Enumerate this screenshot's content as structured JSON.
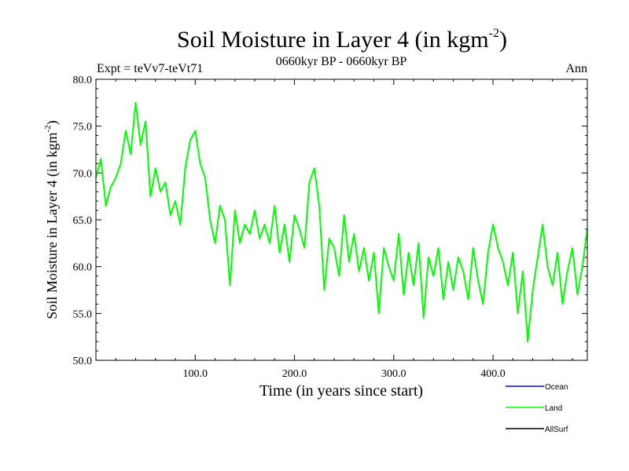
{
  "chart_data": {
    "type": "line",
    "title": "Soil Moisture in Layer 4 (in kgm",
    "title_superscript": "-2",
    "title_close": ")",
    "subtitle": "0660kyr BP - 0660kyr BP",
    "left_label": "Expt = teVv7-teVt71",
    "right_label": "Ann",
    "xlabel": "Time (in years since start)",
    "ylabel": "Soil Moisture in Layer 4 (in kgm",
    "ylabel_superscript": "-2",
    "ylabel_close": ")",
    "xlim": [
      0,
      495
    ],
    "ylim": [
      50,
      80
    ],
    "x_ticks": [
      {
        "value": 100,
        "label": "100.0"
      },
      {
        "value": 200,
        "label": "200.0"
      },
      {
        "value": 300,
        "label": "300.0"
      },
      {
        "value": 400,
        "label": "400.0"
      }
    ],
    "y_ticks": [
      {
        "value": 50,
        "label": "50.0"
      },
      {
        "value": 55,
        "label": "55.0"
      },
      {
        "value": 60,
        "label": "60.0"
      },
      {
        "value": 65,
        "label": "65.0"
      },
      {
        "value": 70,
        "label": "70.0"
      },
      {
        "value": 75,
        "label": "75.0"
      },
      {
        "value": 80,
        "label": "80.0"
      }
    ],
    "grid": false,
    "legend_position": "bottom-right",
    "series": [
      {
        "name": "Ocean",
        "color": "#0000ff",
        "x": [],
        "y": []
      },
      {
        "name": "Land",
        "color": "#00ff00",
        "x": [
          0,
          5,
          10,
          15,
          20,
          25,
          30,
          35,
          40,
          45,
          50,
          55,
          60,
          65,
          70,
          75,
          80,
          85,
          90,
          95,
          100,
          105,
          110,
          115,
          120,
          125,
          130,
          135,
          140,
          145,
          150,
          155,
          160,
          165,
          170,
          175,
          180,
          185,
          190,
          195,
          200,
          205,
          210,
          215,
          220,
          225,
          230,
          235,
          240,
          245,
          250,
          255,
          260,
          265,
          270,
          275,
          280,
          285,
          290,
          295,
          300,
          305,
          310,
          315,
          320,
          325,
          330,
          335,
          340,
          345,
          350,
          355,
          360,
          365,
          370,
          375,
          380,
          385,
          390,
          395,
          400,
          405,
          410,
          415,
          420,
          425,
          430,
          435,
          440,
          445,
          450,
          455,
          460,
          465,
          470,
          475,
          480,
          485,
          490,
          495
        ],
        "y": [
          69.5,
          71.5,
          66.5,
          68.5,
          69.5,
          71.0,
          74.5,
          72.0,
          77.5,
          73.0,
          75.5,
          67.5,
          70.5,
          68.0,
          69.0,
          65.5,
          67.0,
          64.5,
          70.5,
          73.5,
          74.5,
          71.0,
          69.5,
          65.0,
          62.5,
          66.5,
          65.0,
          58.0,
          66.0,
          62.5,
          64.5,
          63.5,
          66.0,
          63.0,
          64.5,
          62.5,
          66.5,
          61.5,
          64.5,
          60.5,
          65.5,
          64.0,
          62.0,
          69.0,
          70.5,
          66.5,
          57.5,
          63.0,
          62.0,
          59.0,
          65.5,
          60.5,
          63.5,
          59.5,
          62.0,
          58.5,
          61.5,
          55.0,
          62.0,
          60.0,
          58.5,
          63.5,
          57.0,
          61.5,
          58.0,
          62.5,
          54.5,
          61.0,
          59.0,
          62.0,
          56.5,
          60.5,
          57.5,
          61.0,
          59.5,
          56.5,
          62.0,
          58.5,
          56.0,
          61.5,
          64.5,
          62.0,
          60.5,
          58.0,
          61.5,
          55.0,
          59.5,
          52.0,
          57.5,
          61.0,
          64.5,
          60.0,
          58.0,
          61.5,
          56.0,
          59.5,
          62.0,
          57.0,
          60.0,
          64.0
        ]
      },
      {
        "name": "AllSurf",
        "color": "#000000",
        "x": [],
        "y": []
      }
    ]
  }
}
